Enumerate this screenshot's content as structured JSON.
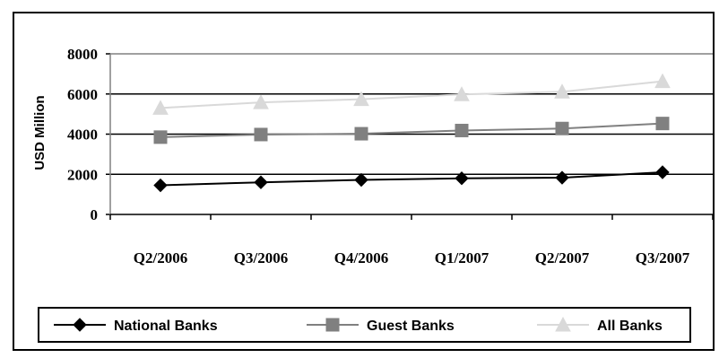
{
  "chart_data": {
    "type": "line",
    "categories": [
      "Q2/2006",
      "Q3/2006",
      "Q4/2006",
      "Q1/2007",
      "Q2/2007",
      "Q3/2007"
    ],
    "ylabel": "USD Million",
    "xlabel": "",
    "ylim": [
      0,
      8000
    ],
    "yticks": [
      "0",
      "2000",
      "4000",
      "6000",
      "8000"
    ],
    "grid": "horizontal",
    "legend_position": "bottom",
    "series": [
      {
        "name": "National Banks",
        "values": [
          1450,
          1600,
          1720,
          1800,
          1830,
          2100
        ],
        "color": "#000000",
        "marker": "diamond"
      },
      {
        "name": "Guest Banks",
        "values": [
          3850,
          3980,
          4020,
          4180,
          4280,
          4530
        ],
        "color": "#808080",
        "marker": "square"
      },
      {
        "name": "All Banks",
        "values": [
          5300,
          5580,
          5740,
          5980,
          6110,
          6630
        ],
        "color": "#d9d9d9",
        "marker": "triangle"
      }
    ]
  }
}
